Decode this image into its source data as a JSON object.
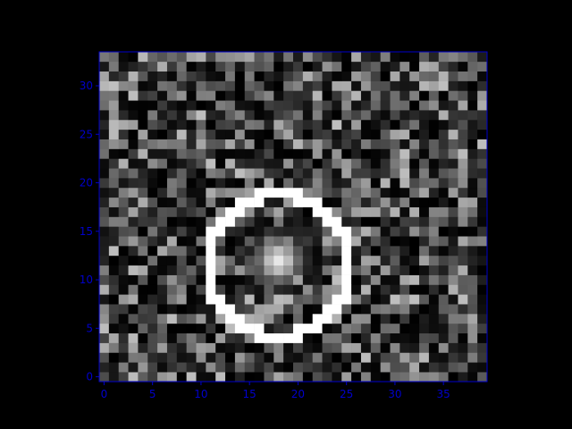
{
  "chart_data": {
    "type": "heatmap",
    "title": "",
    "xlabel": "",
    "ylabel": "",
    "xlim": [
      -0.5,
      39.5
    ],
    "ylim": [
      -0.5,
      33.5
    ],
    "x_ticks": [
      0,
      5,
      10,
      15,
      20,
      25,
      30,
      35
    ],
    "y_ticks": [
      0,
      5,
      10,
      15,
      20,
      25,
      30
    ],
    "x_tick_labels": [
      "0",
      "5",
      "10",
      "15",
      "20",
      "25",
      "30",
      "35"
    ],
    "y_tick_labels": [
      "0",
      "5",
      "10",
      "15",
      "20",
      "25",
      "30"
    ],
    "colormap": "gray",
    "value_range": [
      0,
      1
    ],
    "grid": false,
    "axis_color": "#0000cc",
    "background_color": "#000000",
    "ring": {
      "center": [
        18,
        11.5
      ],
      "radius": 7.3,
      "value": 1.0
    },
    "bright_spot": {
      "center": [
        18,
        12
      ],
      "peak": 0.9,
      "spread": 1.6
    },
    "noise": {
      "mean": 0.18,
      "max": 0.75,
      "seed": 7
    },
    "dimensions": {
      "cols": 40,
      "rows": 34
    }
  }
}
